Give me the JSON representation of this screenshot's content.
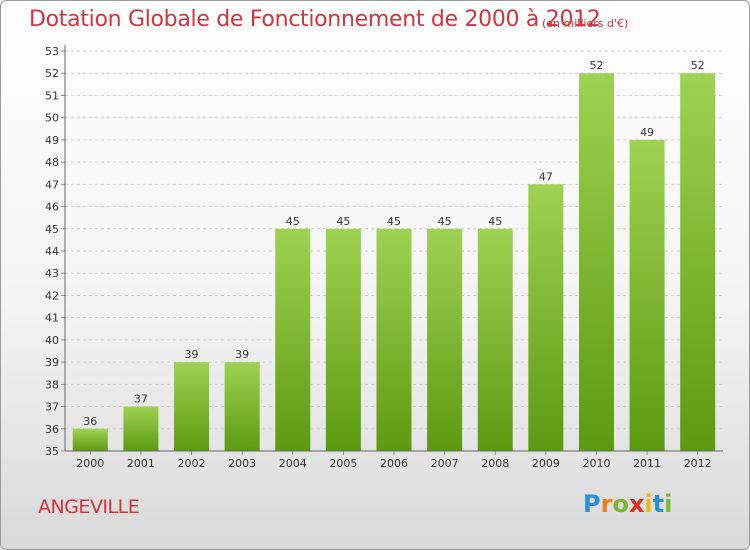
{
  "title": "Dotation Globale de Fonctionnement de 2000 à 2012",
  "unit": "(en milliers d'€)",
  "commune": "ANGEVILLE",
  "brand": {
    "letters": [
      "P",
      "r",
      "o",
      "x",
      "i",
      "t",
      "i"
    ],
    "colors": [
      "#2a8fd6",
      "#f07d1a",
      "#7ab82e",
      "#e0301e",
      "#f0b61a",
      "#2a8fd6",
      "#7ab82e"
    ]
  },
  "colors": {
    "bar_top": "#9fd252",
    "bar_bottom": "#5c9a12",
    "grid": "#cccccc",
    "title": "#d1343b"
  },
  "chart_data": {
    "type": "bar",
    "categories": [
      "2000",
      "2001",
      "2002",
      "2003",
      "2004",
      "2005",
      "2006",
      "2007",
      "2008",
      "2009",
      "2010",
      "2011",
      "2012"
    ],
    "values": [
      36,
      37,
      39,
      39,
      45,
      45,
      45,
      45,
      45,
      47,
      52,
      49,
      52
    ],
    "ylim": [
      35,
      53
    ],
    "yticks": [
      35,
      36,
      37,
      38,
      39,
      40,
      41,
      42,
      43,
      44,
      45,
      46,
      47,
      48,
      49,
      50,
      51,
      52,
      53
    ],
    "grid": true,
    "data_labels": true
  }
}
